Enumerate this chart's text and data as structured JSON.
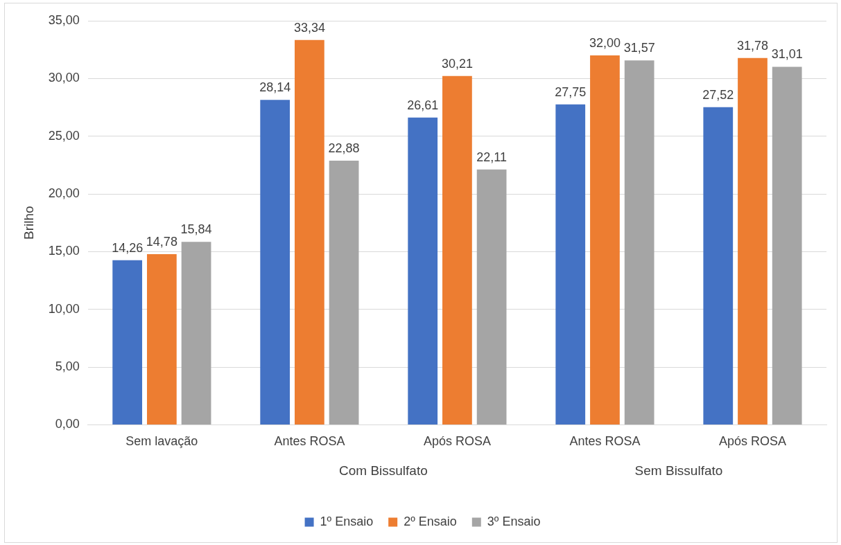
{
  "chart_data": {
    "type": "bar",
    "ylabel": "Brilho",
    "categories": [
      "Sem lavação",
      "Antes ROSA",
      "Após ROSA",
      "Antes ROSA",
      "Após ROSA"
    ],
    "series": [
      {
        "name": "1º Ensaio",
        "color": "#4472c4",
        "values": [
          14.26,
          28.14,
          26.61,
          27.75,
          27.52
        ],
        "value_labels": [
          "14,26",
          "28,14",
          "26,61",
          "27,75",
          "27,52"
        ]
      },
      {
        "name": "2º Ensaio",
        "color": "#ed7d31",
        "values": [
          14.78,
          33.34,
          30.21,
          32.0,
          31.78
        ],
        "value_labels": [
          "14,78",
          "33,34",
          "30,21",
          "32,00",
          "31,78"
        ]
      },
      {
        "name": "3º Ensaio",
        "color": "#a5a5a5",
        "values": [
          15.84,
          22.88,
          22.11,
          31.57,
          31.01
        ],
        "value_labels": [
          "15,84",
          "22,88",
          "22,11",
          "31,57",
          "31,01"
        ]
      }
    ],
    "ylim": [
      0,
      35
    ],
    "yticks": [
      {
        "value": 0,
        "label": "0,00"
      },
      {
        "value": 5,
        "label": "5,00"
      },
      {
        "value": 10,
        "label": "10,00"
      },
      {
        "value": 15,
        "label": "15,00"
      },
      {
        "value": 20,
        "label": "20,00"
      },
      {
        "value": 25,
        "label": "25,00"
      },
      {
        "value": 30,
        "label": "30,00"
      },
      {
        "value": 35,
        "label": "35,00"
      }
    ],
    "annotations": [
      "Com Bissulfato",
      "Sem Bissulfato"
    ],
    "grid": "y",
    "legend": "bottom"
  }
}
